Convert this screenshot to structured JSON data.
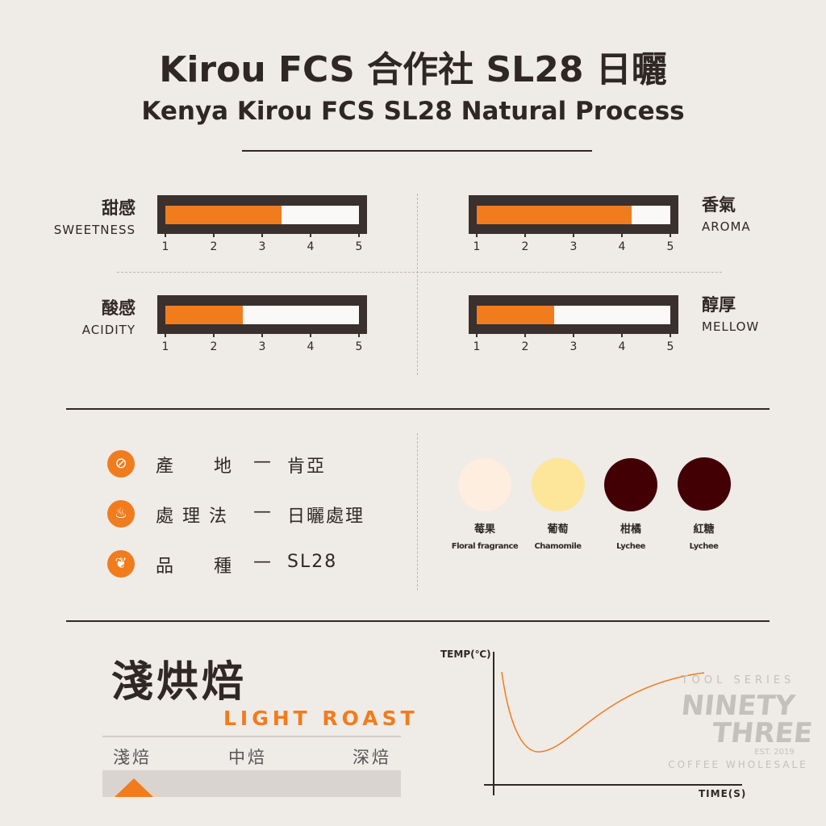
{
  "title": "Kirou FCS 合作社 SL28 日曬",
  "subtitle": "Kenya Kirou FCS  SL28 Natural Process",
  "scale_ticks": [
    "1",
    "2",
    "3",
    "4",
    "5"
  ],
  "attributes": [
    {
      "zh": "甜感",
      "en": "SWEETNESS",
      "value": 3,
      "max": 5
    },
    {
      "zh": "香氣",
      "en": "AROMA",
      "value": 4,
      "max": 5
    },
    {
      "zh": "酸感",
      "en": "ACIDITY",
      "value": 2,
      "max": 5
    },
    {
      "zh": "醇厚",
      "en": "MELLOW",
      "value": 2,
      "max": 5
    }
  ],
  "info": [
    {
      "icon": "coffee-bean-icon",
      "label": "產　　地",
      "dash": "—",
      "value": "肯亞"
    },
    {
      "icon": "process-steam-icon",
      "label": "處 理 法",
      "dash": "—",
      "value": "日曬處理"
    },
    {
      "icon": "plant-icon",
      "label": "品　　種",
      "dash": "—",
      "value": "SL28"
    }
  ],
  "flavors": [
    {
      "zh": "莓果",
      "en": "Floral fragrance",
      "color": "#fdeee0"
    },
    {
      "zh": "葡萄",
      "en": "Chamomile",
      "color": "#fde59a"
    },
    {
      "zh": "柑橘",
      "en": "Lychee",
      "color": "#420005"
    },
    {
      "zh": "紅糖",
      "en": "Lychee",
      "color": "#420005"
    }
  ],
  "roast": {
    "title": "淺烘焙",
    "en": "LIGHT ROAST",
    "levels": [
      "淺焙",
      "中焙",
      "深焙"
    ],
    "selected": "淺焙"
  },
  "curve": {
    "ylabel": "TEMP(℃)",
    "xlabel": "TIME(S)"
  },
  "logo": {
    "top": "TOOL SERIES",
    "line1": "NINETY",
    "line2": "THREE",
    "est": "EST. 2019",
    "bottom": "COFFEE WHOLESALE"
  },
  "colors": {
    "accent": "#f07c1e",
    "dark": "#3a302d",
    "background": "#efebe7"
  }
}
